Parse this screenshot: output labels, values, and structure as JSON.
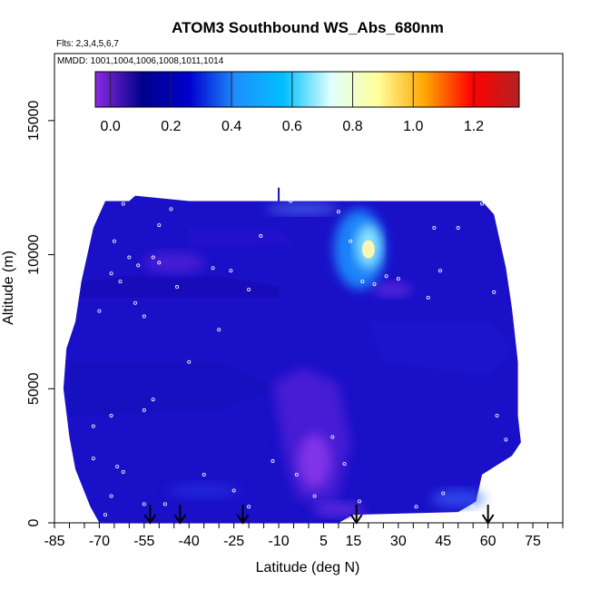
{
  "chart_data": {
    "type": "heatmap",
    "title": "ATOM3 Southbound WS_Abs_680nm",
    "subtitle_flights": "Flts: 2,3,4,5,6,7",
    "subtitle_dates": "MMDD: 1001,1004,1006,1008,1011,1014",
    "xlabel": "Latitude (deg N)",
    "ylabel": "Altitude (m)",
    "xlim": [
      -85,
      85
    ],
    "ylim": [
      0,
      17500
    ],
    "x_ticks": [
      -85,
      -70,
      -55,
      -40,
      -25,
      -10,
      5,
      15,
      30,
      45,
      60,
      75
    ],
    "y_ticks": [
      0,
      5000,
      10000,
      15000
    ],
    "colorbar": {
      "ticks": [
        0.0,
        0.2,
        0.4,
        0.6,
        0.8,
        1.0,
        1.2
      ],
      "tick_labels": [
        "0.0",
        "0.2",
        "0.4",
        "0.6",
        "0.8",
        "1.0",
        "1.2"
      ],
      "range": [
        -0.05,
        1.35
      ],
      "stops": [
        "#8a2be2",
        "#00008b",
        "#0000cd",
        "#1e90ff",
        "#00bfff",
        "#e0ffff",
        "#ffff99",
        "#ffa500",
        "#ff0000",
        "#b22222"
      ]
    },
    "arrow_latitudes": [
      -53,
      -43,
      -22,
      16,
      60
    ],
    "field_description_points": [
      {
        "lat": 0,
        "alt": 2000,
        "value": -0.05
      },
      {
        "lat": 20,
        "alt": 10200,
        "value": 0.75
      },
      {
        "lat": 17,
        "alt": 11300,
        "value": 0.55
      }
    ]
  }
}
